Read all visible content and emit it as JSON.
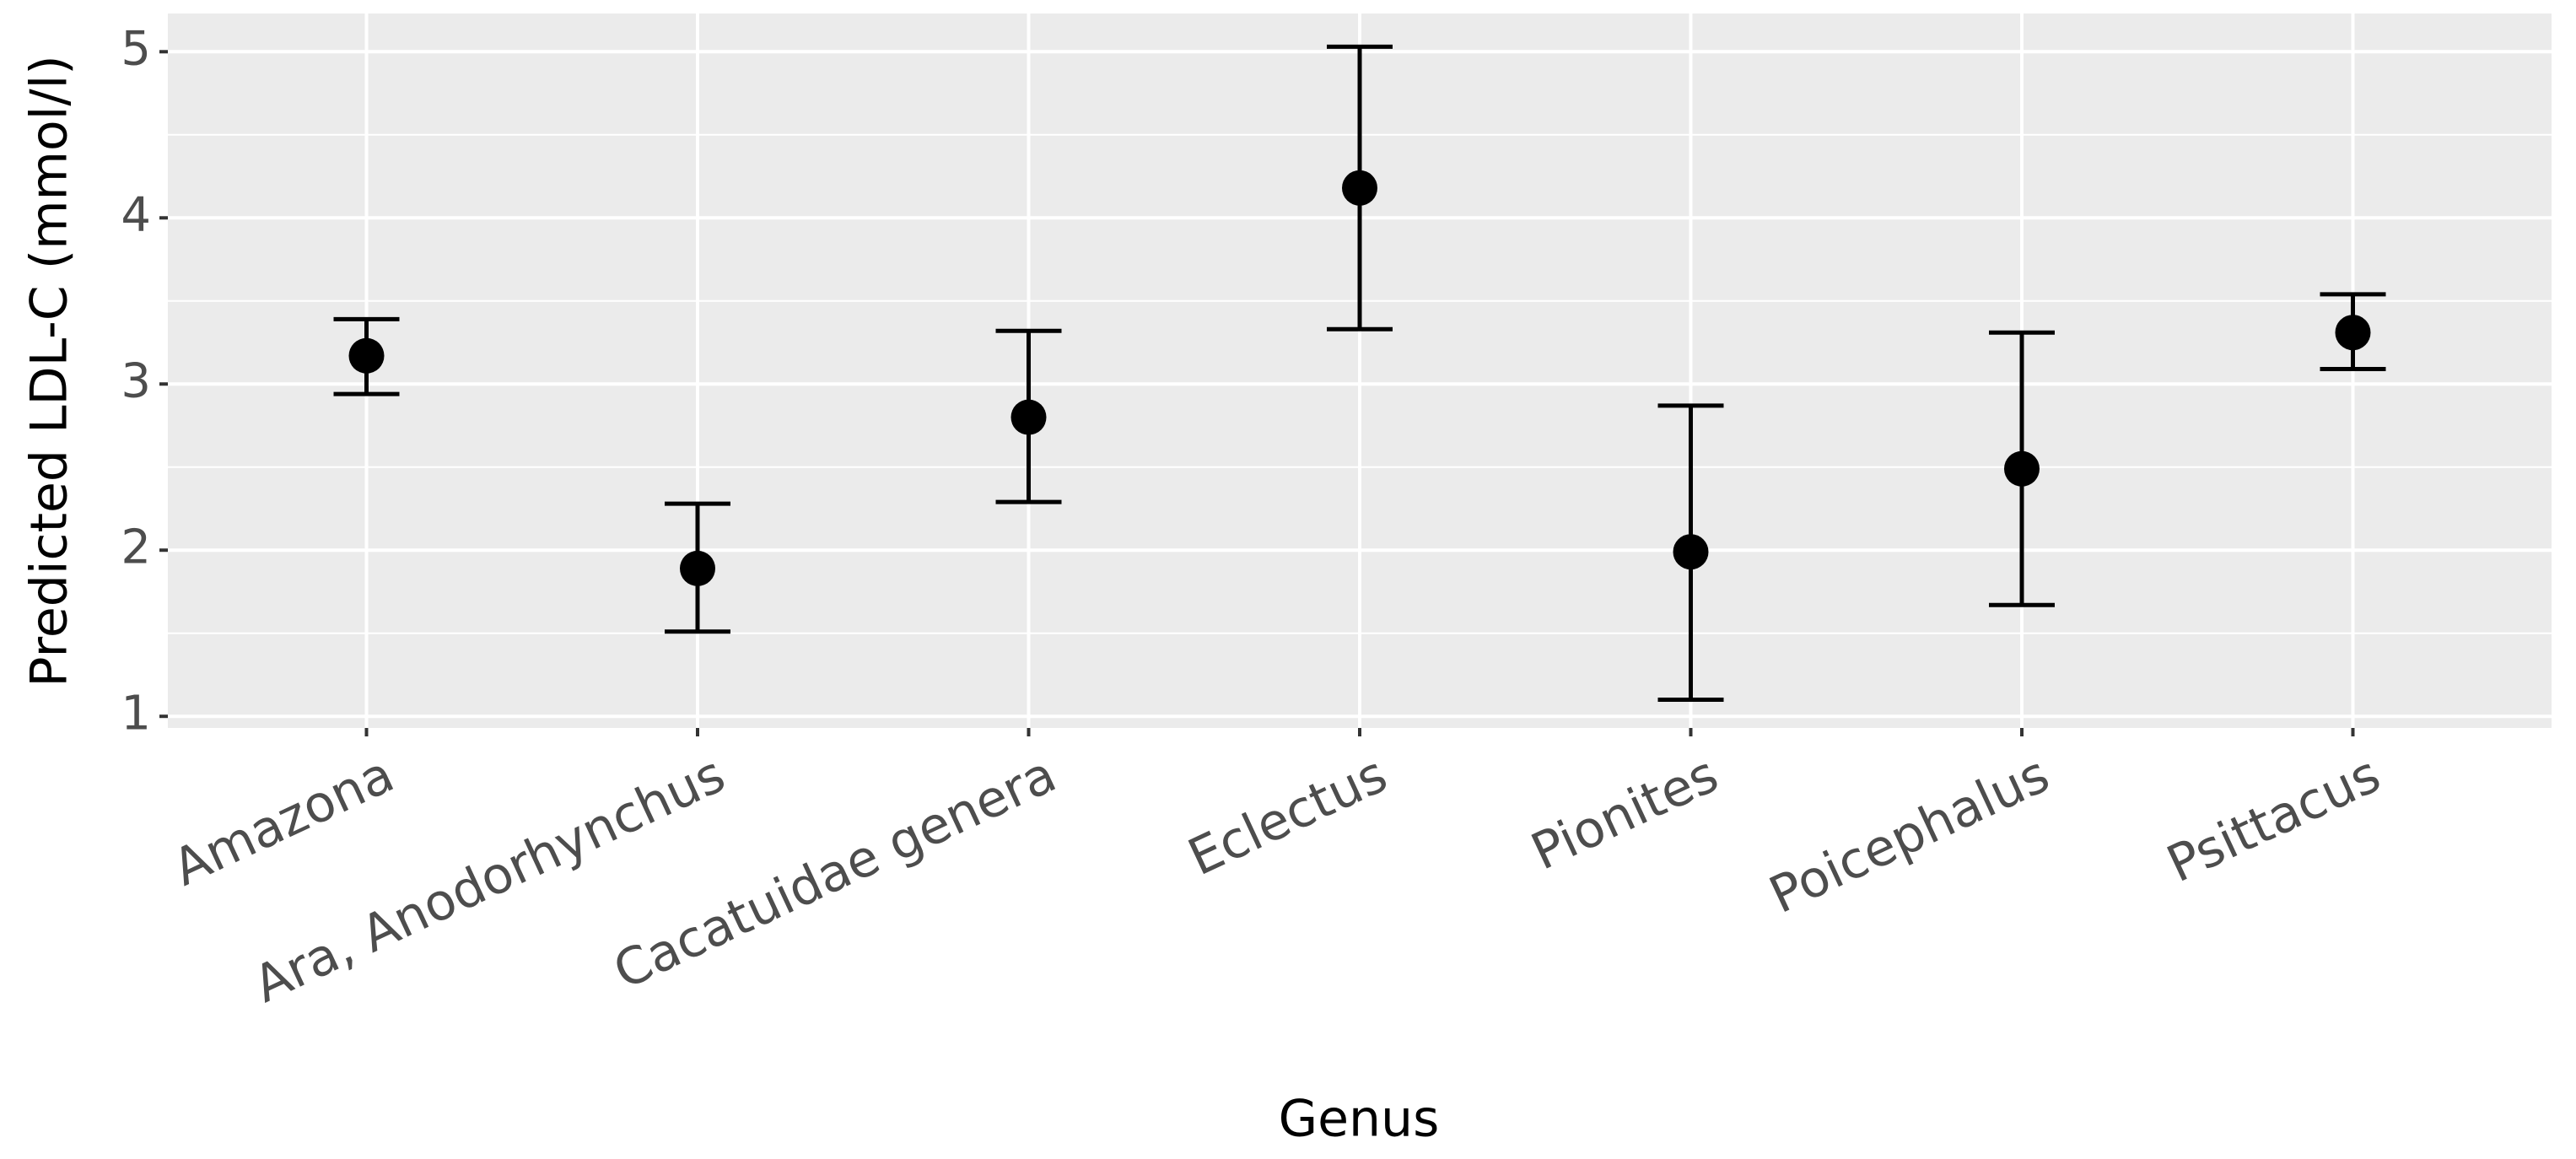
{
  "chart_data": {
    "type": "pointrange",
    "x_label": "Genus",
    "y_label": "Predicted LDL-C (mmol/l)",
    "categories": [
      "Amazona",
      "Ara, Anodorhynchus",
      "Cacatuidae genera",
      "Eclectus",
      "Pionites",
      "Poicephalus",
      "Psittacus"
    ],
    "values": [
      3.17,
      1.89,
      2.8,
      4.18,
      1.99,
      2.49,
      3.31
    ],
    "lower": [
      2.94,
      1.51,
      2.29,
      3.33,
      1.1,
      1.67,
      3.09
    ],
    "upper": [
      3.39,
      2.28,
      3.32,
      5.03,
      2.87,
      3.31,
      3.54
    ],
    "color": "#000000",
    "ylim": [
      0.93,
      5.23
    ],
    "yticks": [
      1,
      2,
      3,
      4,
      5
    ],
    "yminorticks": [
      1.5,
      2.5,
      3.5,
      4.5
    ],
    "grid": true
  }
}
